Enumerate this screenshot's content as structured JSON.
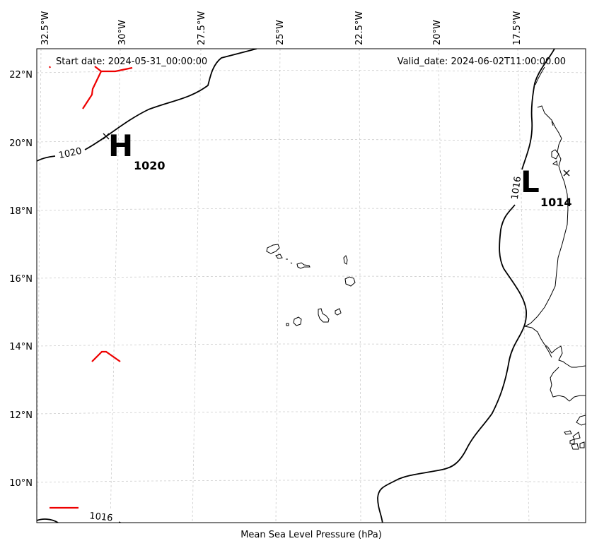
{
  "header": {
    "start_date": "Start date: 2024-05-31_00:00:00",
    "valid_date": "Valid_date: 2024-06-02T11:00:00.00"
  },
  "lon_ticks": [
    "32.5°W",
    "30°W",
    "27.5°W",
    "25°W",
    "22.5°W",
    "20°W",
    "17.5°W"
  ],
  "lat_ticks": [
    "22°N",
    "20°N",
    "18°N",
    "16°N",
    "14°N",
    "12°N",
    "10°N"
  ],
  "high": {
    "letter": "H",
    "value": "1020"
  },
  "low": {
    "letter": "L",
    "value": "1014"
  },
  "contour_labels": {
    "c1020": "1020",
    "c1016_east": "1016",
    "c1016_sw": "1016"
  },
  "xlabel": "Mean Sea Level Pressure (hPa)",
  "colors": {
    "isobar": "#000000",
    "front": "#ee0000",
    "grid": "#cccccc",
    "coast": "#000000"
  }
}
